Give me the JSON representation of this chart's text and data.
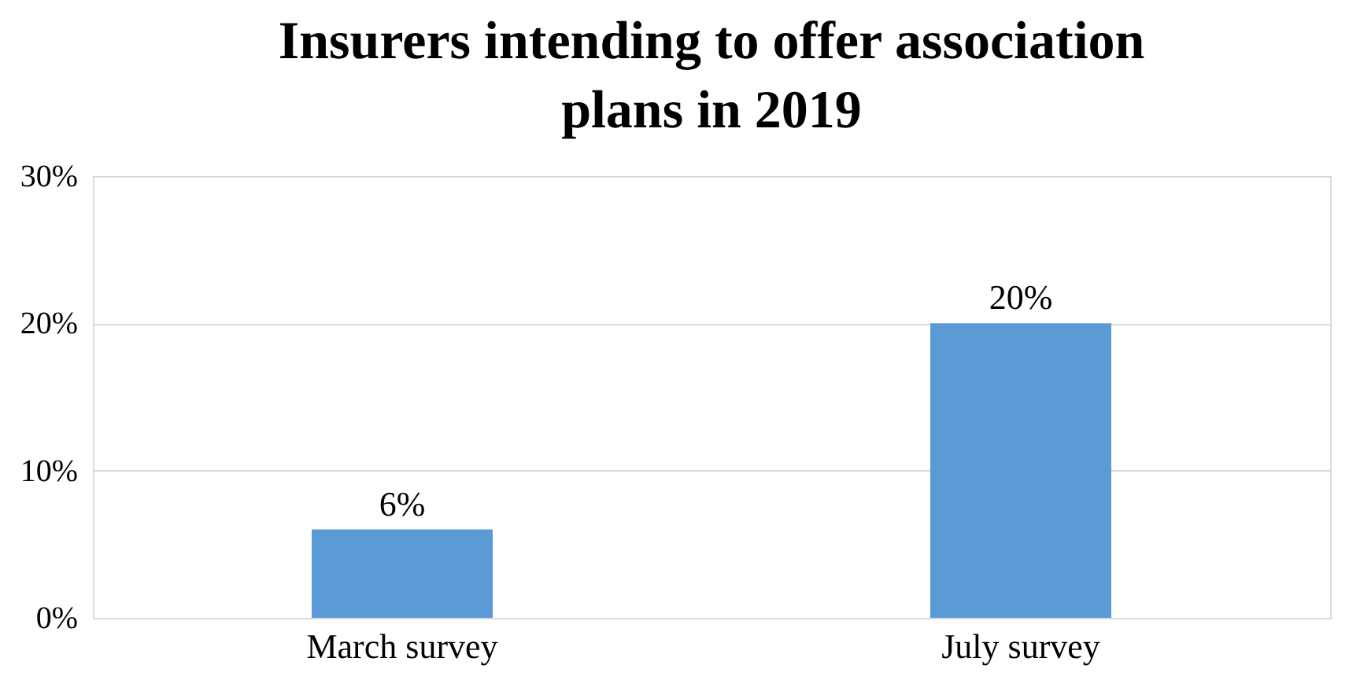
{
  "chart_data": {
    "type": "bar",
    "title": "Insurers intending to offer association plans in 2019",
    "categories": [
      "March survey",
      "July survey"
    ],
    "values": [
      6,
      20
    ],
    "value_labels": [
      "6%",
      "20%"
    ],
    "color": "#5b9bd5",
    "ylim": [
      0,
      30
    ],
    "yticks": [
      {
        "value": 0,
        "label": "0%"
      },
      {
        "value": 10,
        "label": "10%"
      },
      {
        "value": 20,
        "label": "20%"
      },
      {
        "value": 30,
        "label": "30%"
      }
    ],
    "grid": "y"
  }
}
